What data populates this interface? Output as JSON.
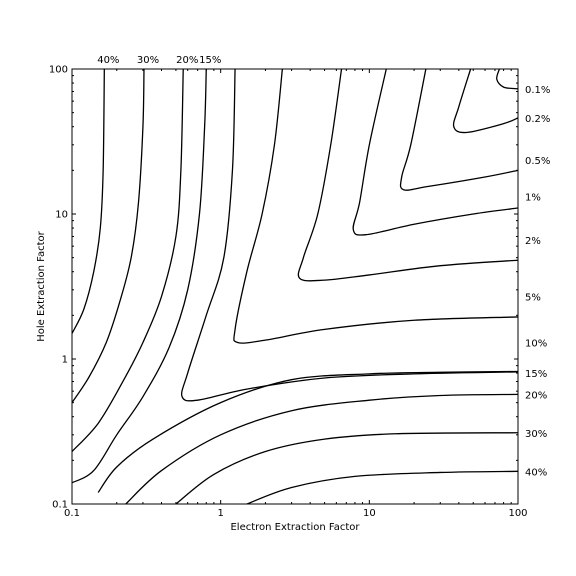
{
  "chart_data": {
    "type": "contour",
    "xlabel": "Electron Extraction Factor",
    "ylabel": "Hole Extraction Factor",
    "xscale": "log",
    "yscale": "log",
    "xlim": [
      0.1,
      100
    ],
    "ylim": [
      0.1,
      100
    ],
    "x_tick_labels": [
      "0.1",
      "1",
      "10",
      "100"
    ],
    "y_tick_labels": [
      "0.1",
      "1",
      "10",
      "100"
    ],
    "top_labels": [
      "40%",
      "30%",
      "20%",
      "15%"
    ],
    "right_labels": [
      "0.1%",
      "0.2%",
      "0.5%",
      "1%",
      "2%",
      "5%",
      "10%",
      "15%",
      "20%",
      "30%",
      "40%"
    ],
    "grid": false,
    "contours": [
      {
        "label": "40%",
        "points": [
          [
            0.1,
            1.5
          ],
          [
            0.12,
            2.2
          ],
          [
            0.14,
            4
          ],
          [
            0.155,
            8
          ],
          [
            0.162,
            20
          ],
          [
            0.165,
            100
          ]
        ]
      },
      {
        "label": "30%",
        "points": [
          [
            0.1,
            0.5
          ],
          [
            0.13,
            0.75
          ],
          [
            0.17,
            1.3
          ],
          [
            0.21,
            2.5
          ],
          [
            0.25,
            5
          ],
          [
            0.28,
            12
          ],
          [
            0.3,
            40
          ],
          [
            0.305,
            100
          ]
        ]
      },
      {
        "label": "20%",
        "points": [
          [
            0.1,
            0.23
          ],
          [
            0.15,
            0.36
          ],
          [
            0.22,
            0.7
          ],
          [
            0.3,
            1.3
          ],
          [
            0.4,
            2.7
          ],
          [
            0.5,
            7
          ],
          [
            0.54,
            20
          ],
          [
            0.56,
            100
          ]
        ]
      },
      {
        "label": "15%",
        "points": [
          [
            0.1,
            0.14
          ],
          [
            0.14,
            0.17
          ],
          [
            0.2,
            0.3
          ],
          [
            0.3,
            0.55
          ],
          [
            0.45,
            1.2
          ],
          [
            0.6,
            3
          ],
          [
            0.72,
            10
          ],
          [
            0.78,
            40
          ],
          [
            0.8,
            100
          ]
        ]
      },
      {
        "label": "10%",
        "points": [
          [
            0.15,
            0.12
          ],
          [
            0.2,
            0.18
          ],
          [
            0.35,
            0.28
          ],
          [
            1,
            0.5
          ],
          [
            3,
            0.72
          ],
          [
            10,
            0.79
          ],
          [
            30,
            0.81
          ],
          [
            100,
            0.82
          ]
        ]
      },
      {
        "label": "20%",
        "points": [
          [
            0.23,
            0.1
          ],
          [
            0.4,
            0.17
          ],
          [
            1,
            0.3
          ],
          [
            3,
            0.44
          ],
          [
            10,
            0.52
          ],
          [
            30,
            0.56
          ],
          [
            100,
            0.57
          ]
        ]
      },
      {
        "label": "30%",
        "points": [
          [
            0.5,
            0.1
          ],
          [
            0.9,
            0.16
          ],
          [
            2,
            0.23
          ],
          [
            5,
            0.28
          ],
          [
            15,
            0.305
          ],
          [
            100,
            0.31
          ]
        ]
      },
      {
        "label": "40%",
        "points": [
          [
            1.5,
            0.1
          ],
          [
            3,
            0.13
          ],
          [
            8,
            0.155
          ],
          [
            30,
            0.165
          ],
          [
            100,
            0.168
          ]
        ]
      },
      {
        "label": "15%",
        "points": [
          [
            1.25,
            100
          ],
          [
            1.2,
            20
          ],
          [
            1.05,
            5
          ],
          [
            0.8,
            2
          ],
          [
            0.6,
            0.8
          ],
          [
            0.55,
            0.55
          ],
          [
            0.7,
            0.52
          ],
          [
            1.5,
            0.62
          ],
          [
            5,
            0.74
          ],
          [
            20,
            0.79
          ],
          [
            100,
            0.815
          ]
        ]
      },
      {
        "label": "10%",
        "points": [
          [
            2.6,
            100
          ],
          [
            2.3,
            30
          ],
          [
            1.9,
            10
          ],
          [
            1.5,
            4
          ],
          [
            1.25,
            1.6
          ],
          [
            1.3,
            1.3
          ],
          [
            2,
            1.35
          ],
          [
            5,
            1.6
          ],
          [
            20,
            1.85
          ],
          [
            100,
            1.95
          ]
        ]
      },
      {
        "label": "5%",
        "points": [
          [
            6.5,
            100
          ],
          [
            5.5,
            30
          ],
          [
            4.5,
            10
          ],
          [
            3.6,
            5
          ],
          [
            3.4,
            3.6
          ],
          [
            5,
            3.5
          ],
          [
            10,
            3.8
          ],
          [
            30,
            4.4
          ],
          [
            100,
            4.8
          ]
        ]
      },
      {
        "label": "2%",
        "points": [
          [
            13,
            100
          ],
          [
            10,
            30
          ],
          [
            8.6,
            12
          ],
          [
            7.8,
            7.8
          ],
          [
            9.5,
            7.2
          ],
          [
            20,
            8.5
          ],
          [
            50,
            10
          ],
          [
            100,
            11
          ]
        ]
      },
      {
        "label": "1%",
        "points": [
          [
            24,
            100
          ],
          [
            19,
            30
          ],
          [
            16.5,
            18
          ],
          [
            17,
            14.7
          ],
          [
            25,
            15.5
          ],
          [
            60,
            18
          ],
          [
            100,
            20
          ]
        ]
      },
      {
        "label": "0.5%",
        "points": [
          [
            48,
            100
          ],
          [
            40,
            55
          ],
          [
            37,
            40
          ],
          [
            45,
            36.5
          ],
          [
            80,
            42
          ],
          [
            100,
            46
          ]
        ]
      },
      {
        "label": "0.2%",
        "points": [
          [
            75,
            100
          ],
          [
            72,
            85
          ],
          [
            80,
            75
          ],
          [
            100,
            73
          ]
        ]
      }
    ]
  }
}
